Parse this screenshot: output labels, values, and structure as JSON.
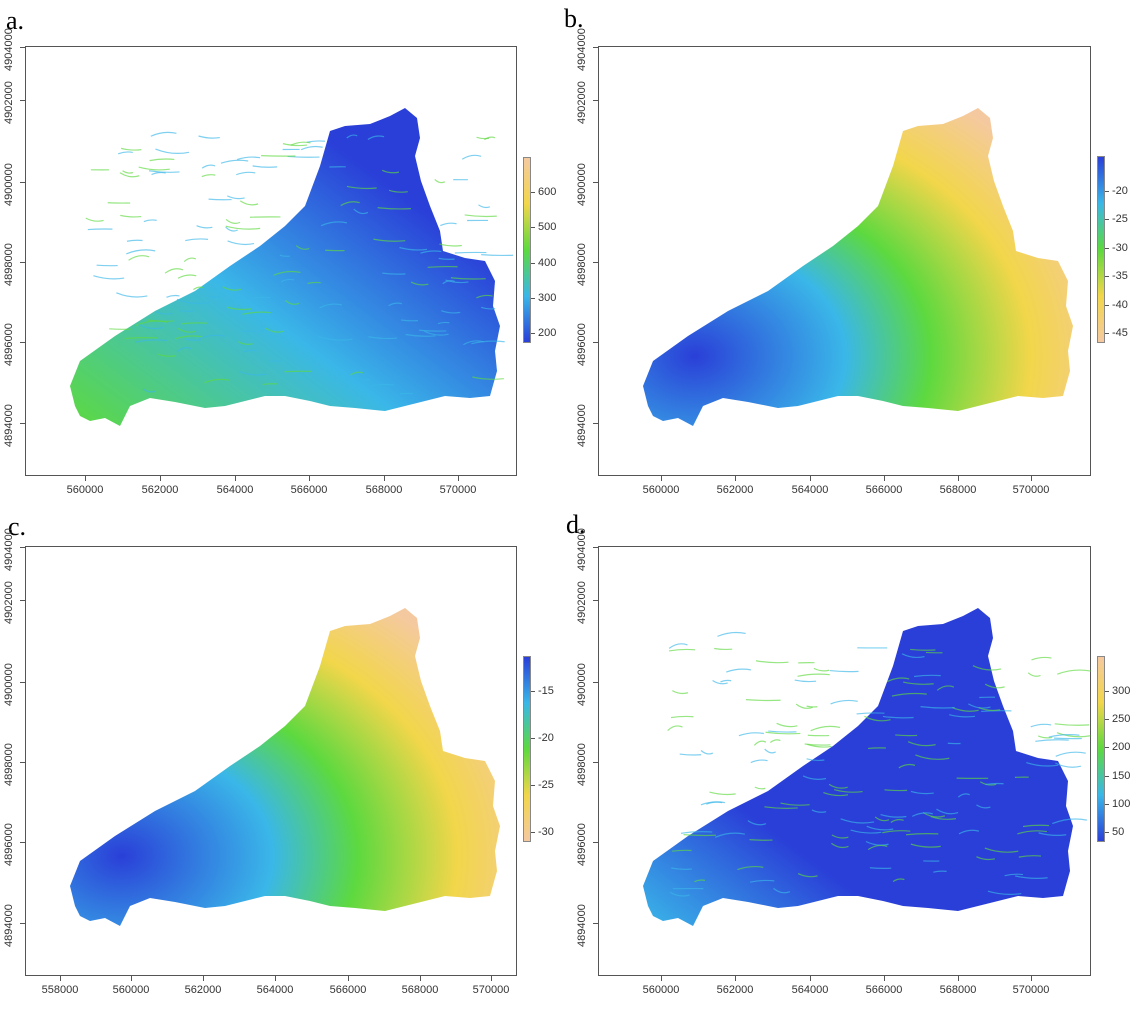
{
  "panels": [
    {
      "letter": "a.",
      "x_ticks": [
        "560000",
        "562000",
        "564000",
        "566000",
        "568000",
        "570000"
      ],
      "y_ticks": [
        "4894000",
        "4896000",
        "4898000",
        "4900000",
        "4902000",
        "4904000"
      ],
      "legend": {
        "labels": [
          "600",
          "500",
          "400",
          "300",
          "200"
        ],
        "colors": [
          "#f5c9a0",
          "#f2d64a",
          "#5dd93f",
          "#3ab7e8",
          "#2a3fd8"
        ]
      },
      "map_style": "texture-green"
    },
    {
      "letter": "b.",
      "x_ticks": [
        "560000",
        "562000",
        "564000",
        "566000",
        "568000",
        "570000"
      ],
      "y_ticks": [
        "4894000",
        "4896000",
        "4898000",
        "4900000",
        "4902000",
        "4904000"
      ],
      "legend": {
        "labels": [
          "-20",
          "-25",
          "-30",
          "-35",
          "-40",
          "-45"
        ],
        "colors": [
          "#2a3fd8",
          "#3ab7e8",
          "#5dd93f",
          "#f2d64a",
          "#f5c9a0"
        ]
      },
      "map_style": "gradient"
    },
    {
      "letter": "c.",
      "x_ticks": [
        "558000",
        "560000",
        "562000",
        "564000",
        "566000",
        "568000",
        "570000"
      ],
      "y_ticks": [
        "4894000",
        "4896000",
        "4898000",
        "4900000",
        "4902000",
        "4904000"
      ],
      "legend": {
        "labels": [
          "-15",
          "-20",
          "-25",
          "-30"
        ],
        "colors": [
          "#2a3fd8",
          "#3ab7e8",
          "#5dd93f",
          "#f2d64a",
          "#f5c9a0"
        ]
      },
      "map_style": "gradient"
    },
    {
      "letter": "d.",
      "x_ticks": [
        "560000",
        "562000",
        "564000",
        "566000",
        "568000",
        "570000"
      ],
      "y_ticks": [
        "4894000",
        "4896000",
        "4898000",
        "4900000",
        "4902000",
        "4904000"
      ],
      "legend": {
        "labels": [
          "300",
          "250",
          "200",
          "150",
          "100",
          "50"
        ],
        "colors": [
          "#f5c9a0",
          "#f2d64a",
          "#5dd93f",
          "#3ab7e8",
          "#2a3fd8"
        ]
      },
      "map_style": "texture-blue"
    }
  ]
}
